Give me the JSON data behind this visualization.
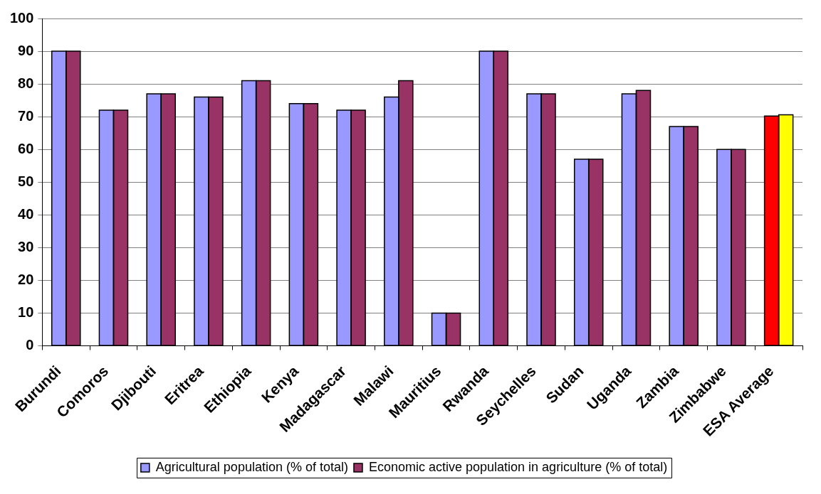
{
  "chart_data": {
    "type": "bar",
    "categories": [
      "Burundi",
      "Comoros",
      "Djibouti",
      "Eritrea",
      "Ethiopia",
      "Kenya",
      "Madagascar",
      "Malawi",
      "Mauritius",
      "Rwanda",
      "Seychelles",
      "Sudan",
      "Uganda",
      "Zambia",
      "Zimbabwe",
      "ESA Average"
    ],
    "series": [
      {
        "name": "Agricultural population (% of total)",
        "color": "#9999ff",
        "colors": [
          "#9999ff",
          "#9999ff",
          "#9999ff",
          "#9999ff",
          "#9999ff",
          "#9999ff",
          "#9999ff",
          "#9999ff",
          "#9999ff",
          "#9999ff",
          "#9999ff",
          "#9999ff",
          "#9999ff",
          "#9999ff",
          "#9999ff",
          "#ff0000"
        ],
        "values": [
          90,
          72,
          77,
          76,
          81,
          74,
          72,
          76,
          10,
          90,
          77,
          57,
          77,
          67,
          60,
          70.2
        ]
      },
      {
        "name": "Economic active population in agriculture (% of total)",
        "color": "#993366",
        "colors": [
          "#993366",
          "#993366",
          "#993366",
          "#993366",
          "#993366",
          "#993366",
          "#993366",
          "#993366",
          "#993366",
          "#993366",
          "#993366",
          "#993366",
          "#993366",
          "#993366",
          "#993366",
          "#ffff00"
        ],
        "values": [
          90,
          72,
          77,
          76,
          81,
          74,
          72,
          81,
          10,
          90,
          77,
          57,
          78,
          67,
          60,
          70.6
        ]
      }
    ],
    "ylim": [
      0,
      100
    ],
    "yticks": [
      0,
      10,
      20,
      30,
      40,
      50,
      60,
      70,
      80,
      90,
      100
    ],
    "grid": "y",
    "legend": "bottom"
  }
}
